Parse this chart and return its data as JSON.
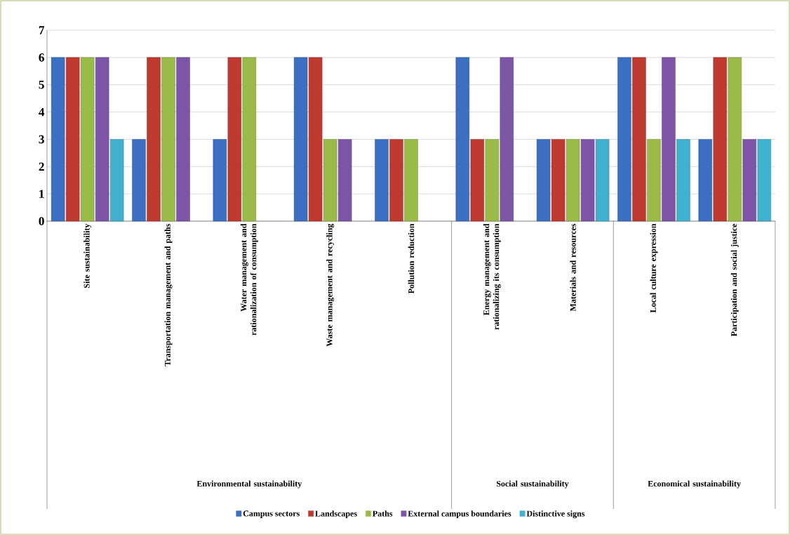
{
  "chart_data": {
    "type": "bar",
    "categories": [
      "Site sustainability",
      "Transportation management and paths",
      "Water management and rationalization of consumption",
      "Waste management and recycling",
      "Pollution reduction",
      "Energy management and rationalizing its consumption",
      "Materials and resources",
      "Local culture expression",
      "Participation and social justice"
    ],
    "series": [
      {
        "name": "Campus sectors",
        "color": "#3b6fc2",
        "values": [
          6,
          3,
          3,
          6,
          3,
          6,
          3,
          6,
          3
        ]
      },
      {
        "name": "Landscapes",
        "color": "#c0392f",
        "values": [
          6,
          6,
          6,
          6,
          3,
          3,
          3,
          6,
          6
        ]
      },
      {
        "name": "Paths",
        "color": "#9bbb48",
        "values": [
          6,
          6,
          6,
          3,
          3,
          3,
          3,
          3,
          6
        ]
      },
      {
        "name": "External campus boundaries",
        "color": "#7d55a6",
        "values": [
          6,
          6,
          null,
          3,
          null,
          6,
          3,
          6,
          3
        ]
      },
      {
        "name": "Distinctive signs",
        "color": "#3fb2cf",
        "values": [
          3,
          null,
          null,
          null,
          null,
          null,
          3,
          3,
          3
        ]
      }
    ],
    "annotations": [
      "Environmental sustainability",
      "Social sustainability",
      "Economical sustainability"
    ],
    "ylim": [
      0,
      7
    ],
    "yticks": [
      0,
      1,
      2,
      3,
      4,
      5,
      6,
      7
    ],
    "grid": "y",
    "legend": "bottom"
  }
}
